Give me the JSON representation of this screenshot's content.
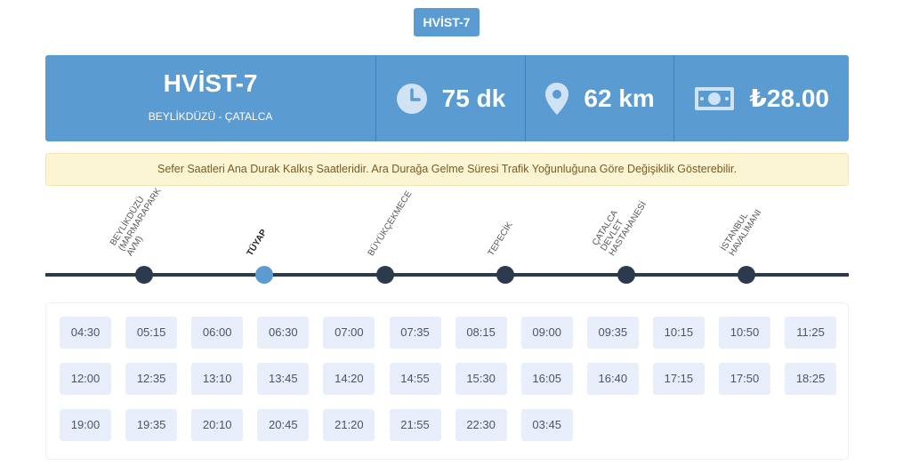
{
  "header": {
    "badge": "HVİST-7"
  },
  "route": {
    "code": "HVİST-7",
    "name": "BEYLİKDÜZÜ - ÇATALCA",
    "duration": "75 dk",
    "distance": "62 km",
    "price": "₺28.00"
  },
  "notice": "Sefer Saatleri Ana Durak Kalkış Saatleridir. Ara Durağa Gelme Süresi Trafik Yoğunluğuna Göre Değişiklik Gösterebilir.",
  "stops": [
    {
      "lines": [
        "BEYLİKDÜZÜ",
        "(MARMARAPARK",
        "AVM)"
      ],
      "active": false
    },
    {
      "lines": [
        "TÜYAP"
      ],
      "active": true
    },
    {
      "lines": [
        "BÜYÜKÇEKMECE"
      ],
      "active": false
    },
    {
      "lines": [
        "TEPECİK"
      ],
      "active": false
    },
    {
      "lines": [
        "ÇATALCA",
        "DEVLET",
        "HASTAHANESİ"
      ],
      "active": false
    },
    {
      "lines": [
        "İSTANBUL",
        "HAVALİMANI"
      ],
      "active": false
    }
  ],
  "times": [
    "04:30",
    "05:15",
    "06:00",
    "06:30",
    "07:00",
    "07:35",
    "08:15",
    "09:00",
    "09:35",
    "10:15",
    "10:50",
    "11:25",
    "12:00",
    "12:35",
    "13:10",
    "13:45",
    "14:20",
    "14:55",
    "15:30",
    "16:05",
    "16:40",
    "17:15",
    "17:50",
    "18:25",
    "19:00",
    "19:35",
    "20:10",
    "20:45",
    "21:20",
    "21:55",
    "22:30",
    "03:45"
  ],
  "icons": {
    "duration": "clock-icon",
    "distance": "map-pin-icon",
    "price": "money-bill-icon"
  },
  "colors": {
    "primary": "#5a9bd1",
    "stop": "#2b3a4c",
    "notice_bg": "#fcf5d4",
    "time_bg": "#e8effa"
  }
}
